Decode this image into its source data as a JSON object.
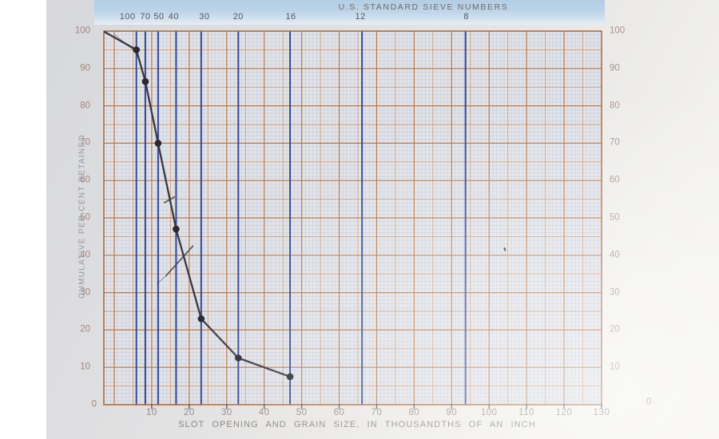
{
  "header": {
    "title": "U.S. STANDARD SIEVE NUMBERS"
  },
  "axes": {
    "y_label": "CUMULATIVE PER CENT RETAINED",
    "x_label": "SLOT OPENING AND GRAIN SIZE, IN THOUSANDTHS OF AN INCH"
  },
  "chart_data": {
    "type": "line",
    "title": "U.S. STANDARD SIEVE NUMBERS",
    "xlabel": "SLOT OPENING AND GRAIN SIZE, IN THOUSANDTHS OF AN INCH",
    "ylabel": "CUMULATIVE PER CENT RETAINED",
    "xlim": [
      0,
      130
    ],
    "ylim": [
      0,
      100
    ],
    "x_ticks": [
      10,
      20,
      30,
      40,
      50,
      60,
      70,
      80,
      90,
      100,
      110,
      120,
      130
    ],
    "y_ticks": [
      100,
      90,
      80,
      70,
      60,
      50,
      40,
      30,
      20,
      10,
      0
    ],
    "grid": {
      "grid_on": true,
      "minor_step": 1,
      "medium_step": 5,
      "major_step": 10
    },
    "sieve_lines": [
      {
        "label": "100",
        "x": 5.9,
        "dx": -11
      },
      {
        "label": "70",
        "x": 8.3,
        "dx": 0
      },
      {
        "label": "50",
        "x": 11.7,
        "dx": 1
      },
      {
        "label": "40",
        "x": 16.5,
        "dx": -3
      },
      {
        "label": "30",
        "x": 23.2,
        "dx": 4
      },
      {
        "label": "20",
        "x": 33.1,
        "dx": 0
      },
      {
        "label": "16",
        "x": 46.9,
        "dx": 1
      },
      {
        "label": "12",
        "x": 66.1,
        "dx": -2
      },
      {
        "label": "8",
        "x": 93.7,
        "dx": 1
      }
    ],
    "series": [
      {
        "name": "Cumulative per cent retained",
        "points": [
          {
            "x": 0,
            "y": 100,
            "dot": false
          },
          {
            "x": 5.9,
            "y": 95,
            "dot": true
          },
          {
            "x": 8.3,
            "y": 86.5,
            "dot": true
          },
          {
            "x": 11.7,
            "y": 70,
            "dot": true
          },
          {
            "x": 16.5,
            "y": 47,
            "dot": true
          },
          {
            "x": 23.2,
            "y": 23,
            "dot": true
          },
          {
            "x": 33.1,
            "y": 12.5,
            "dot": true
          },
          {
            "x": 46.9,
            "y": 7.5,
            "dot": true
          }
        ]
      }
    ],
    "annotations": [
      {
        "type": "stroke",
        "points": [
          [
            13.4,
            54.1
          ],
          [
            16.0,
            55.6
          ]
        ],
        "faint": false
      },
      {
        "type": "stroke",
        "points": [
          [
            21.0,
            42.5
          ],
          [
            13.9,
            34.6
          ]
        ],
        "faint": false
      },
      {
        "type": "stroke",
        "points": [
          [
            13.9,
            34.6
          ],
          [
            11.4,
            32.3
          ]
        ],
        "faint": true
      },
      {
        "type": "stroke",
        "points": [
          [
            0.3,
            98.9
          ],
          [
            5.6,
            94.6
          ]
        ],
        "faint": true
      },
      {
        "type": "speck",
        "at": [
          103.8,
          41.9
        ]
      }
    ],
    "legend": null,
    "colors": {
      "paper": "#e2e3e8",
      "grid_minor": "#b9c1d2",
      "grid_medium": "#cb8f63",
      "grid_major": "#b5713f",
      "border": "#ae6c3e",
      "sieve_line": "#2a3f92",
      "curve": "#3a3740",
      "dot": "#2b2831",
      "band": "#b7cfe4",
      "annotation": "#45434b"
    }
  }
}
